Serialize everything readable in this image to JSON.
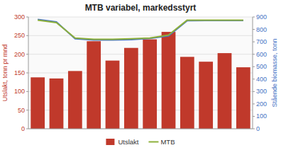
{
  "chart_data": {
    "type": "bar",
    "title": "MTB variabel, markedsstyrt",
    "ylabel": "Utslakt, tonn pr mnd",
    "y2label": "Stående biomasse, tonn",
    "categories": [
      null,
      null,
      null,
      null,
      null,
      null,
      null,
      null,
      null,
      null,
      null,
      null
    ],
    "series": [
      {
        "name": "Utslakt",
        "type": "bar",
        "color": "#c0392b",
        "values": [
          138,
          135,
          155,
          235,
          183,
          217,
          240,
          260,
          193,
          180,
          203,
          165
        ]
      },
      {
        "type": "line",
        "axis": "y2",
        "color": "#4472c4",
        "values": [
          880,
          860,
          725,
          715,
          715,
          718,
          728,
          748,
          870,
          872,
          872,
          872
        ]
      },
      {
        "name": "MTB",
        "type": "line",
        "axis": "y2",
        "color": "#8db03b",
        "values": [
          875,
          855,
          730,
          720,
          720,
          725,
          730,
          755,
          875,
          875,
          875,
          875
        ]
      }
    ],
    "ylim": [
      0,
      300
    ],
    "yticks": [
      0,
      50,
      100,
      150,
      200,
      250,
      300
    ],
    "y2lim": [
      0,
      900
    ],
    "y2ticks": [
      0,
      100,
      200,
      300,
      400,
      500,
      600,
      700,
      800,
      900
    ],
    "grid": true,
    "legend": "bottom",
    "tick_labels": "y"
  }
}
